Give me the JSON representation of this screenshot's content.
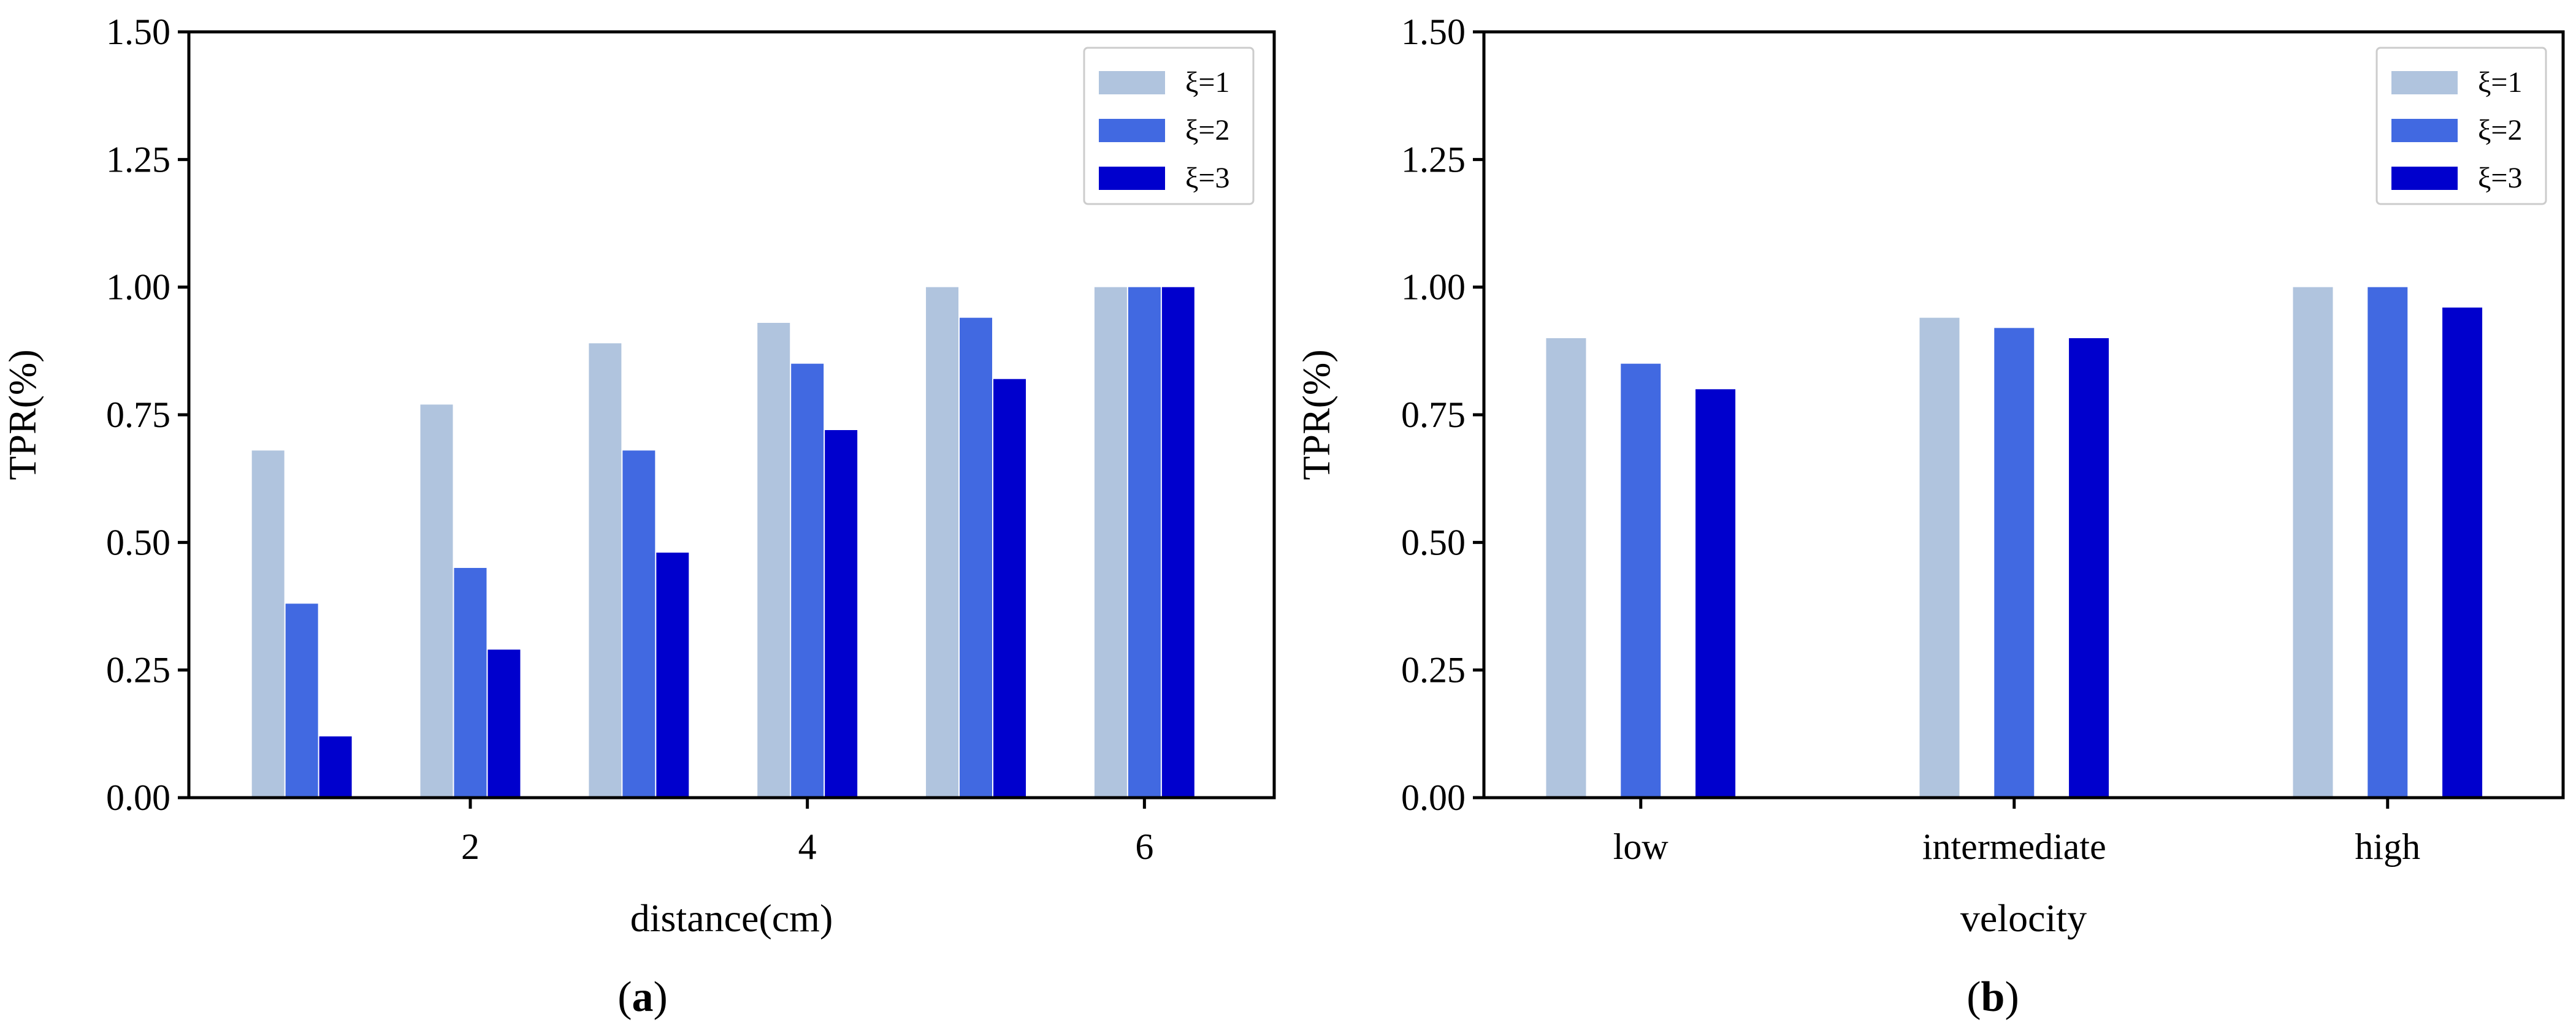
{
  "colors": {
    "xi1": "#b0c4de",
    "xi2": "#4169e1",
    "xi3": "#0000cd",
    "axis": "#000000",
    "legend_border": "#cccccc"
  },
  "chart_data": [
    {
      "type": "bar",
      "panel": "a",
      "caption_open": "(",
      "caption_letter": "a",
      "caption_close": ")",
      "xlabel": "distance(cm)",
      "ylabel": "TPR(%)",
      "x": [
        1,
        2,
        3,
        4,
        5,
        6
      ],
      "xlim": [
        0.33,
        6.77
      ],
      "xticks": [
        2,
        4,
        6
      ],
      "xtick_labels": [
        "2",
        "4",
        "6"
      ],
      "ylim": [
        0,
        1.5
      ],
      "yticks": [
        0,
        0.25,
        0.5,
        0.75,
        1.0,
        1.25,
        1.5
      ],
      "ytick_labels": [
        "0.00",
        "0.25",
        "0.50",
        "0.75",
        "1.00",
        "1.25",
        "1.50"
      ],
      "bar_width": 0.18,
      "bar_offsets": [
        -0.2,
        0.0,
        0.2
      ],
      "legend_position": "top-right",
      "series": [
        {
          "name": "ξ=1",
          "color_key": "xi1",
          "values": [
            0.68,
            0.77,
            0.89,
            0.93,
            1.0,
            1.0
          ]
        },
        {
          "name": "ξ=2",
          "color_key": "xi2",
          "values": [
            0.38,
            0.45,
            0.68,
            0.85,
            0.94,
            1.0
          ]
        },
        {
          "name": "ξ=3",
          "color_key": "xi3",
          "values": [
            0.12,
            0.29,
            0.48,
            0.72,
            0.82,
            1.0
          ]
        }
      ]
    },
    {
      "type": "bar",
      "panel": "b",
      "caption_open": "(",
      "caption_letter": "b",
      "caption_close": ")",
      "xlabel": "velocity",
      "ylabel": "TPR(%)",
      "x": [
        0,
        1,
        2
      ],
      "xlim": [
        -0.42,
        2.47
      ],
      "xticks": [
        0,
        1,
        2
      ],
      "xtick_labels": [
        "low",
        "intermediate",
        "high"
      ],
      "ylim": [
        0,
        1.5
      ],
      "yticks": [
        0,
        0.25,
        0.5,
        0.75,
        1.0,
        1.25,
        1.5
      ],
      "ytick_labels": [
        "0.00",
        "0.25",
        "0.50",
        "0.75",
        "1.00",
        "1.25",
        "1.50"
      ],
      "bar_width": 0.05,
      "bar_offsets": [
        -0.2,
        0.0,
        0.2
      ],
      "legend_position": "top-right",
      "series": [
        {
          "name": "ξ=1",
          "color_key": "xi1",
          "values": [
            0.9,
            0.94,
            1.0
          ]
        },
        {
          "name": "ξ=2",
          "color_key": "xi2",
          "values": [
            0.85,
            0.92,
            1.0
          ]
        },
        {
          "name": "ξ=3",
          "color_key": "xi3",
          "values": [
            0.8,
            0.9,
            0.96
          ]
        }
      ]
    }
  ]
}
